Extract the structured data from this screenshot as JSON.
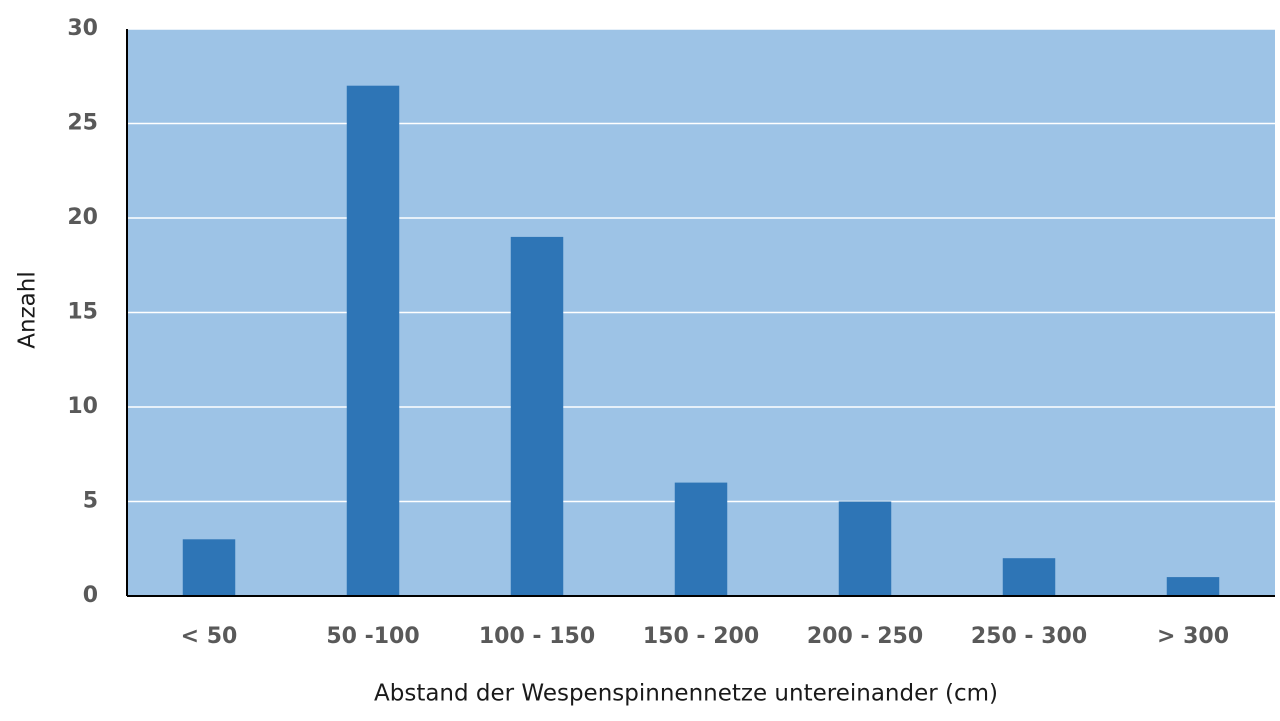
{
  "chart_data": {
    "type": "bar",
    "x_label": "Abstand der Wespenspinnennetze untereinander (cm)",
    "y_label": "Anzahl",
    "categories": [
      "< 50",
      "50 -100",
      "100 - 150",
      "150 - 200",
      "200 - 250",
      "250 - 300",
      "> 300"
    ],
    "values": [
      3,
      27,
      19,
      6,
      5,
      2,
      1
    ],
    "color": "#2e75b6",
    "plot_background": "#9dc3e6",
    "ylim": [
      0,
      30
    ],
    "yticks": [
      0,
      5,
      10,
      15,
      20,
      25,
      30
    ],
    "grid": true
  }
}
